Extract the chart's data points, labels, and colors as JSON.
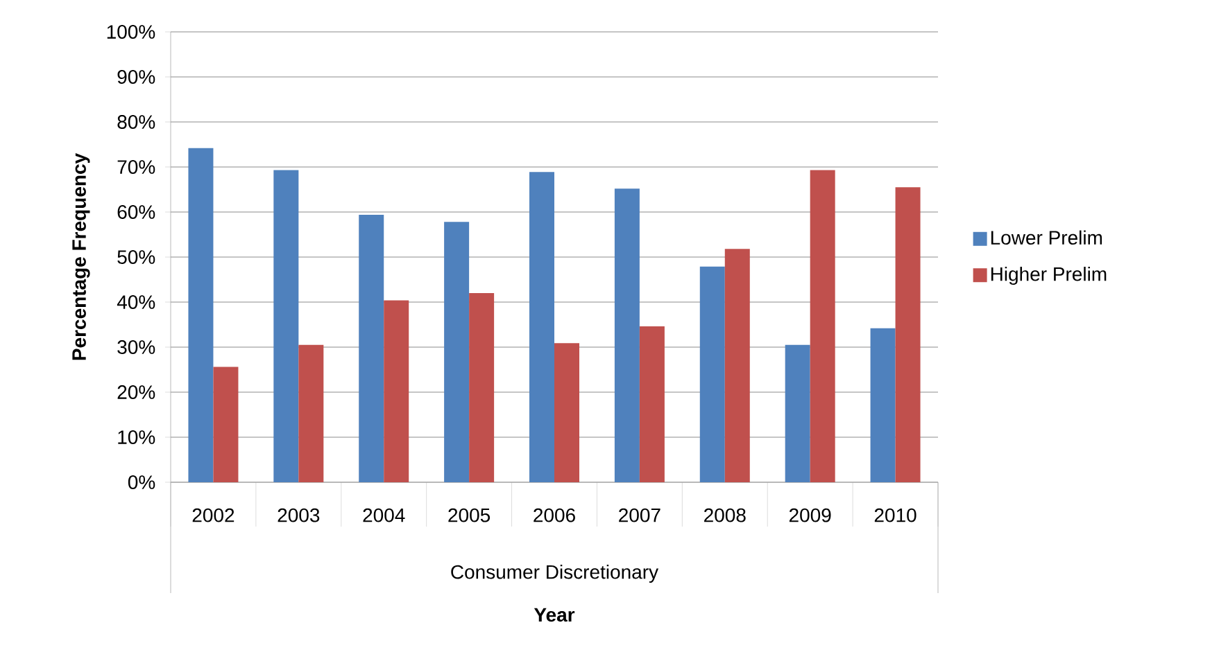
{
  "chart_data": {
    "type": "bar",
    "xlabel": "Year",
    "ylabel": "Percentage Frequency",
    "categories": [
      "2002",
      "2003",
      "2004",
      "2005",
      "2006",
      "2007",
      "2008",
      "2009",
      "2010"
    ],
    "series": [
      {
        "name": "Lower Prelim",
        "color": "#4f81bd",
        "values": [
          74.2,
          69.3,
          59.4,
          57.8,
          68.9,
          65.2,
          47.9,
          30.5,
          34.2
        ]
      },
      {
        "name": "Higher Prelim",
        "color": "#c0504d",
        "values": [
          25.6,
          30.5,
          40.4,
          42.0,
          30.9,
          34.6,
          51.8,
          69.3,
          65.5
        ]
      }
    ],
    "ylim": [
      0,
      100
    ],
    "yticks": [
      {
        "value": 0,
        "label": "0%"
      },
      {
        "value": 10,
        "label": "10%"
      },
      {
        "value": 20,
        "label": "20%"
      },
      {
        "value": 30,
        "label": "30%"
      },
      {
        "value": 40,
        "label": "40%"
      },
      {
        "value": 50,
        "label": "50%"
      },
      {
        "value": 60,
        "label": "60%"
      },
      {
        "value": 70,
        "label": "70%"
      },
      {
        "value": 80,
        "label": "80%"
      },
      {
        "value": 90,
        "label": "90%"
      },
      {
        "value": 100,
        "label": "100%"
      }
    ],
    "grid": "y",
    "legend": "right",
    "annotations": [
      "Consumer Discretionary"
    ]
  }
}
